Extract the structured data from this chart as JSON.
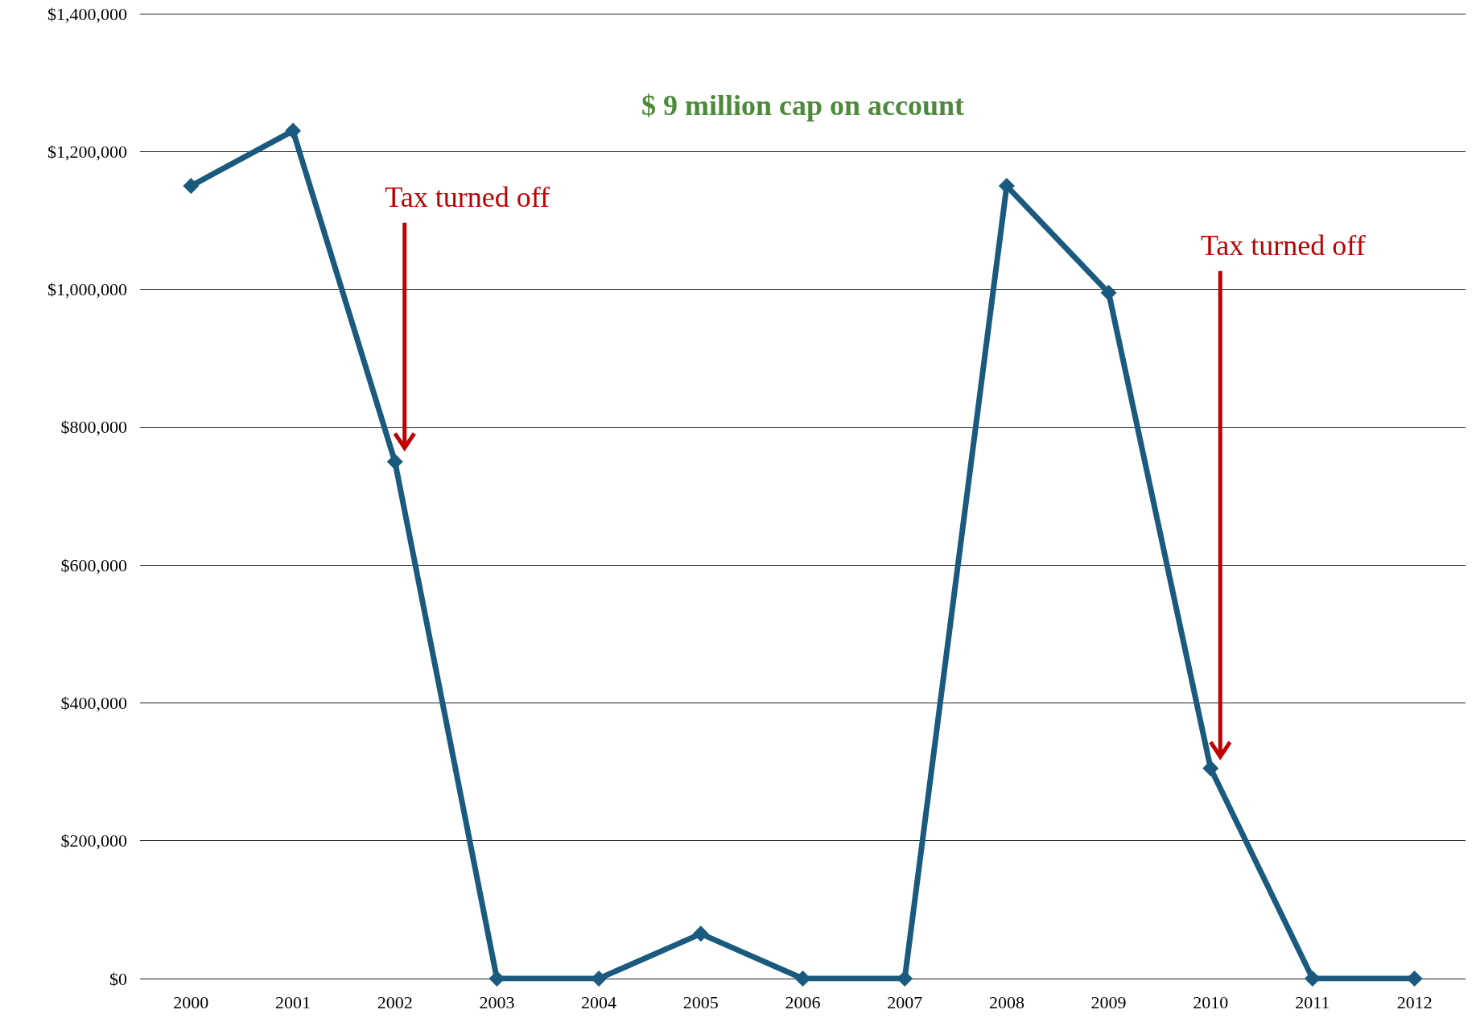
{
  "chart_data": {
    "type": "line",
    "categories": [
      "2000",
      "2001",
      "2002",
      "2003",
      "2004",
      "2005",
      "2006",
      "2007",
      "2008",
      "2009",
      "2010",
      "2011",
      "2012"
    ],
    "series": [
      {
        "color": "#1a5a7e",
        "values": [
          1150000,
          1230000,
          750000,
          0,
          0,
          65000,
          0,
          0,
          1150000,
          995000,
          305000,
          0,
          0
        ]
      }
    ],
    "ylim": [
      0,
      1400000
    ],
    "yticks": [
      {
        "value": 0,
        "label": "$0"
      },
      {
        "value": 200000,
        "label": "$200,000"
      },
      {
        "value": 400000,
        "label": "$400,000"
      },
      {
        "value": 600000,
        "label": "$600,000"
      },
      {
        "value": 800000,
        "label": "$800,000"
      },
      {
        "value": 1000000,
        "label": "$1,000,000"
      },
      {
        "value": 1200000,
        "label": "$1,200,000"
      },
      {
        "value": 1400000,
        "label": "$1,400,000"
      }
    ],
    "grid": "y",
    "marker": "diamond",
    "line_style": "solid",
    "annotations": [
      "$ 9 million cap on account",
      "Tax turned off",
      "Tax turned off"
    ]
  }
}
